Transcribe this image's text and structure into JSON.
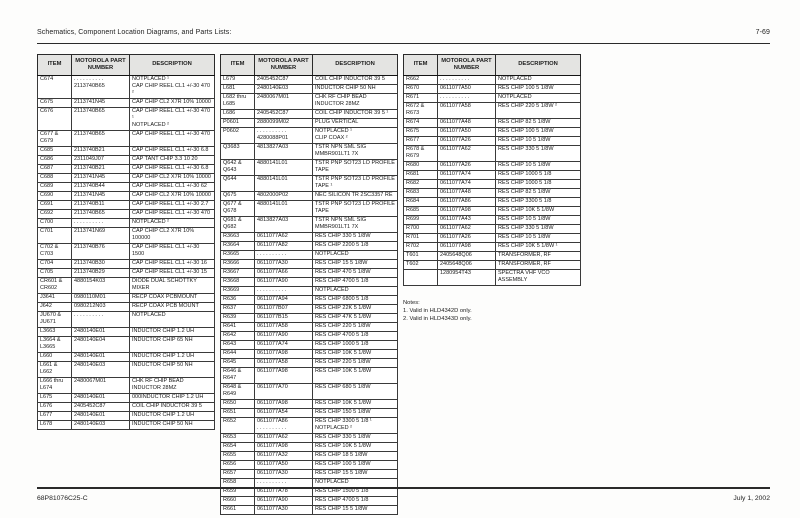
{
  "page": {
    "header_left": "Schematics, Component Location Diagrams, and Parts Lists:",
    "header_right": "7-69",
    "footer_left": "68P81076C25-C",
    "footer_right": "July 1, 2002"
  },
  "table_headers": {
    "item": "ITEM",
    "part": "MOTOROLA PART\nNUMBER",
    "desc": "DESCRIPTION"
  },
  "tables": [
    {
      "rows": [
        {
          "item": "C674",
          "part": ". . . . . . . . . .\n2113740B65",
          "desc": "NOTPLACED ¹\nCAP CHIP REEL CL1 +/-30 470 ²"
        },
        {
          "item": "C675",
          "part": "2113741N45",
          "desc": "CAP CHIP CL2 X7R 10% 10000"
        },
        {
          "item": "C676",
          "part": "2113740B65",
          "desc": "CAP CHIP REEL CL1 +/-30 470 ¹\nNOTPLACED ²"
        },
        {
          "item": "C677 & C679",
          "part": "2113740B65",
          "desc": "CAP CHIP REEL CL1 +/-30 470"
        },
        {
          "item": "C685",
          "part": "2113740B21",
          "desc": "CAP CHIP REEL CL1 +/-30 6.8"
        },
        {
          "item": "C686",
          "part": "2311049J07",
          "desc": "CAP TANT CHIP 3.3 10 20"
        },
        {
          "item": "C687",
          "part": "2113740B21",
          "desc": "CAP CHIP REEL CL1 +/-30 6.8"
        },
        {
          "item": "C688",
          "part": "2113741N45",
          "desc": "CAP CHIP CL2 X7R 10% 10000"
        },
        {
          "item": "C689",
          "part": "2113740B44",
          "desc": "CAP CHIP REEL CL1 +/-30 62"
        },
        {
          "item": "C690",
          "part": "2113741N45",
          "desc": "CAP CHIP CL2 X7R 10% 10000"
        },
        {
          "item": "C691",
          "part": "2113740B11",
          "desc": "CAP CHIP REEL CL1 +/-30 2.7"
        },
        {
          "item": "C692",
          "part": "2113740B65",
          "desc": "CAP CHIP REEL CL1 +/-30 470"
        },
        {
          "item": "C700",
          "part": ". . . . . . . . . .",
          "desc": "NOTPLACED ²"
        },
        {
          "item": "C701",
          "part": "2113741N69",
          "desc": "CAP CHIP CL2 X7R 10% 100000"
        },
        {
          "item": "C702 & C703",
          "part": "2113740B76",
          "desc": "CAP CHIP REEL CL1 +/-30 1500"
        },
        {
          "item": "C704",
          "part": "2113740B30",
          "desc": "CAP CHIP REEL CL1 +/-30 16"
        },
        {
          "item": "C705",
          "part": "2113740B29",
          "desc": "CAP CHIP REEL CL1 +/-30 15"
        },
        {
          "item": "CR601 &\nCR602",
          "part": "4880154K03",
          "desc": "DIODE DUAL SCHOTTKY MIXER"
        },
        {
          "item": "J3641",
          "part": "0980110M01",
          "desc": "RECP COAX PCBMOUNT"
        },
        {
          "item": "J642",
          "part": "0980212N03",
          "desc": "RECP COAX PCB MOUNT"
        },
        {
          "item": "JU670 &\nJU671",
          "part": ". . . . . . . . . .",
          "desc": "NOTPLACED"
        },
        {
          "item": "L3663",
          "part": "2480140E01",
          "desc": "INDUCTOR CHIP 1.2 UH"
        },
        {
          "item": "L3664 &\nL3665",
          "part": "2480140E04",
          "desc": "INDUCTOR CHIP 65 NH"
        },
        {
          "item": "L660",
          "part": "2480140E01",
          "desc": "INDUCTOR CHIP 1.2 UH"
        },
        {
          "item": "L661 & L662",
          "part": "2480140E03",
          "desc": "INDUCTOR CHIP 50 NH"
        },
        {
          "item": "L666 thru\nL674",
          "part": "2480067M01",
          "desc": "CHK RF CHIP BEAD INDUCTOR 28MZ"
        },
        {
          "item": "L675",
          "part": "2480140E01",
          "desc": "000INDUCTOR CHIP 1.2 UH"
        },
        {
          "item": "L676",
          "part": "2405452C87",
          "desc": "COIL CHIP INDUCTOR 39 5"
        },
        {
          "item": "L677",
          "part": "2480140E01",
          "desc": "INDUCTOR CHIP 1.2 UH"
        },
        {
          "item": "L678",
          "part": "2480140E03",
          "desc": "INDUCTOR CHIP 50 NH"
        }
      ]
    },
    {
      "rows": [
        {
          "item": "L679",
          "part": "2405452C87",
          "desc": "COIL CHIP INDUCTOR 39 5"
        },
        {
          "item": "L681",
          "part": "2480140E03",
          "desc": "INDUCTOR CHIP 50 NH"
        },
        {
          "item": "L682 thru\nL685",
          "part": "2480067M01",
          "desc": "CHK RF CHIP BEAD INDUCTOR 28MZ"
        },
        {
          "item": "L686",
          "part": "2405452C87",
          "desc": "COIL CHIP INDUCTOR 39 5 ¹"
        },
        {
          "item": "P0601",
          "part": "2880099M02",
          "desc": "PLUG VERTICAL"
        },
        {
          "item": "P0602",
          "part": ". . . . . . . . . .\n4280088P01",
          "desc": "NOTPLACED ¹\nCLIP COAX ²"
        },
        {
          "item": "Q3683",
          "part": "4813827A03",
          "desc": "TSTR NPN SML SIG MMBR901LT1 7X"
        },
        {
          "item": "Q642 &\nQ643",
          "part": "4880141L01",
          "desc": "TSTR PNP SOT23 LO PROFILE TAPE"
        },
        {
          "item": "Q644",
          "part": "4880141L01",
          "desc": "TSTR PNP SOT23 LO PROFILE TAPE ¹"
        },
        {
          "item": "Q675",
          "part": "4802000P02",
          "desc": "NEC SILICON TR 2SC3357 RE"
        },
        {
          "item": "Q677 &\nQ678",
          "part": "4880141L01",
          "desc": "TSTR PNP SOT23 LO PROFILE TAPE"
        },
        {
          "item": "Q681 &\nQ682",
          "part": "4813827A03",
          "desc": "TSTR NPN SML SIG MMBR901LT1 7X"
        },
        {
          "item": "R3663",
          "part": "0611077A62",
          "desc": "RES CHIP 330 5 1/8W"
        },
        {
          "item": "R3664",
          "part": "0611077A82",
          "desc": "RES CHIP 2200 5 1/8"
        },
        {
          "item": "R3665",
          "part": ". . . . . . . . . .",
          "desc": "NOTPLACED"
        },
        {
          "item": "R3666",
          "part": "0611077A30",
          "desc": "RES CHIP 15 5 1/8W"
        },
        {
          "item": "R3667",
          "part": "0611077A66",
          "desc": "RES CHIP 470 5 1/8W"
        },
        {
          "item": "R3668",
          "part": "0611077A90",
          "desc": "RES CHIP 4700 5 1/8"
        },
        {
          "item": "R3669",
          "part": ". . . . . . . . . .",
          "desc": "NOTPLACED"
        },
        {
          "item": "R636",
          "part": "0611077A94",
          "desc": "RES CHIP 6800 5 1/8"
        },
        {
          "item": "R637",
          "part": "0611077B07",
          "desc": "RES CHIP 22K 5 1/8W"
        },
        {
          "item": "R639",
          "part": "0611077B15",
          "desc": "RES CHIP 47K 5 1/8W"
        },
        {
          "item": "R641",
          "part": "0611077A58",
          "desc": "RES CHIP 220 5 1/8W"
        },
        {
          "item": "R642",
          "part": "0611077A90",
          "desc": "RES CHIP 4700 5 1/8"
        },
        {
          "item": "R643",
          "part": "0611077A74",
          "desc": "RES CHIP 1000 5 1/8"
        },
        {
          "item": "R644",
          "part": "0611077A98",
          "desc": "RES CHIP 10K 5 1/8W"
        },
        {
          "item": "R645",
          "part": "0611077A58",
          "desc": "RES CHIP 220 5 1/8W"
        },
        {
          "item": "R646 & R647",
          "part": "0611077A98",
          "desc": "RES CHIP 10K 5 1/8W"
        },
        {
          "item": "R648 & R649",
          "part": "0611077A70",
          "desc": "RES CHIP 680 5 1/8W"
        },
        {
          "item": "R650",
          "part": "0611077A98",
          "desc": "RES CHIP 10K 5 1/8W"
        },
        {
          "item": "R651",
          "part": "0611077A54",
          "desc": "RES CHIP 150 5 1/8W"
        },
        {
          "item": "R652",
          "part": "0611077A86\n. . . . . . . . . .",
          "desc": "RES CHIP 3300 5 1/8 ¹\nNOTPLACED ²"
        },
        {
          "item": "R653",
          "part": "0611077A62",
          "desc": "RES CHIP 330 5 1/8W"
        },
        {
          "item": "R654",
          "part": "0611077A98",
          "desc": "RES CHIP 10K 5 1/8W"
        },
        {
          "item": "R655",
          "part": "0611077A32",
          "desc": "RES CHIP 18 5 1/8W"
        },
        {
          "item": "R656",
          "part": "0611077A50",
          "desc": "RES CHIP 100 5 1/8W"
        },
        {
          "item": "R657",
          "part": "0611077A30",
          "desc": "RES CHIP 15 5 1/8W"
        },
        {
          "item": "R658",
          "part": ". . . . . . . . . .",
          "desc": "NOTPLACED"
        },
        {
          "item": "R659",
          "part": "0611077A78",
          "desc": "RES CHIP 1500 5 1/8"
        },
        {
          "item": "R660",
          "part": "0611077A90",
          "desc": "RES CHIP 4700 5 1/8"
        },
        {
          "item": "R661",
          "part": "0611077A30",
          "desc": "RES CHIP 15 5 1/8W"
        }
      ]
    },
    {
      "rows": [
        {
          "item": "R662",
          "part": ". . . . . . . . . .",
          "desc": "NOTPLACED"
        },
        {
          "item": "R670",
          "part": "0611077A50",
          "desc": "RES CHIP 100 5 1/8W"
        },
        {
          "item": "R671",
          "part": ". . . . . . . . . .",
          "desc": "NOTPLACED"
        },
        {
          "item": "R672 & R673",
          "part": "0611077A58",
          "desc": "RES CHIP 220 5 1/8W ²"
        },
        {
          "item": "R674",
          "part": "0611077A48",
          "desc": "RES CHIP 82 5 1/8W"
        },
        {
          "item": "R675",
          "part": "0611077A50",
          "desc": "RES CHIP 100 5 1/8W"
        },
        {
          "item": "R677",
          "part": "0611077A26",
          "desc": "RES CHIP 10 5 1/8W"
        },
        {
          "item": "R678 & R679",
          "part": "0611077A62",
          "desc": "RES CHIP 330 5 1/8W"
        },
        {
          "item": "R680",
          "part": "0611077A26",
          "desc": "RES CHIP 10 5 1/8W"
        },
        {
          "item": "R681",
          "part": "0611077A74",
          "desc": "RES CHIP 1000 5 1/8"
        },
        {
          "item": "R682",
          "part": "0611077A74",
          "desc": "RES CHIP 1000 5 1/8"
        },
        {
          "item": "R683",
          "part": "0611077A48",
          "desc": "RES CHIP 82 5 1/8W"
        },
        {
          "item": "R684",
          "part": "0611077A86",
          "desc": "RES CHIP 3300 5 1/8"
        },
        {
          "item": "R685",
          "part": "0611077A98",
          "desc": "RES CHIP 10K 5 1/8W"
        },
        {
          "item": "R699",
          "part": "0611077A43",
          "desc": "RES CHIP 10 5 1/8W"
        },
        {
          "item": "R700",
          "part": "0611077A62",
          "desc": "RES CHIP 330 5 1/8W"
        },
        {
          "item": "R701",
          "part": "0611077A26",
          "desc": "RES CHIP 10 5 1/8W"
        },
        {
          "item": "R702",
          "part": "0611077A98",
          "desc": "RES CHIP 10K 5 1/8W ¹"
        },
        {
          "item": "T601",
          "part": "2405648Q06",
          "desc": "TRANSFORMER, RF"
        },
        {
          "item": "T602",
          "part": "2405648Q06",
          "desc": "TRANSFORMER, RF"
        },
        {
          "item": "",
          "part": "1280954T43",
          "desc": "SPECTRA VHF VCO ASSEMBLY"
        }
      ]
    }
  ],
  "notes": {
    "title": "Notes:",
    "items": [
      "1. Valid in HLD4342D only.",
      "2. Valid in HLD4343D only."
    ]
  }
}
